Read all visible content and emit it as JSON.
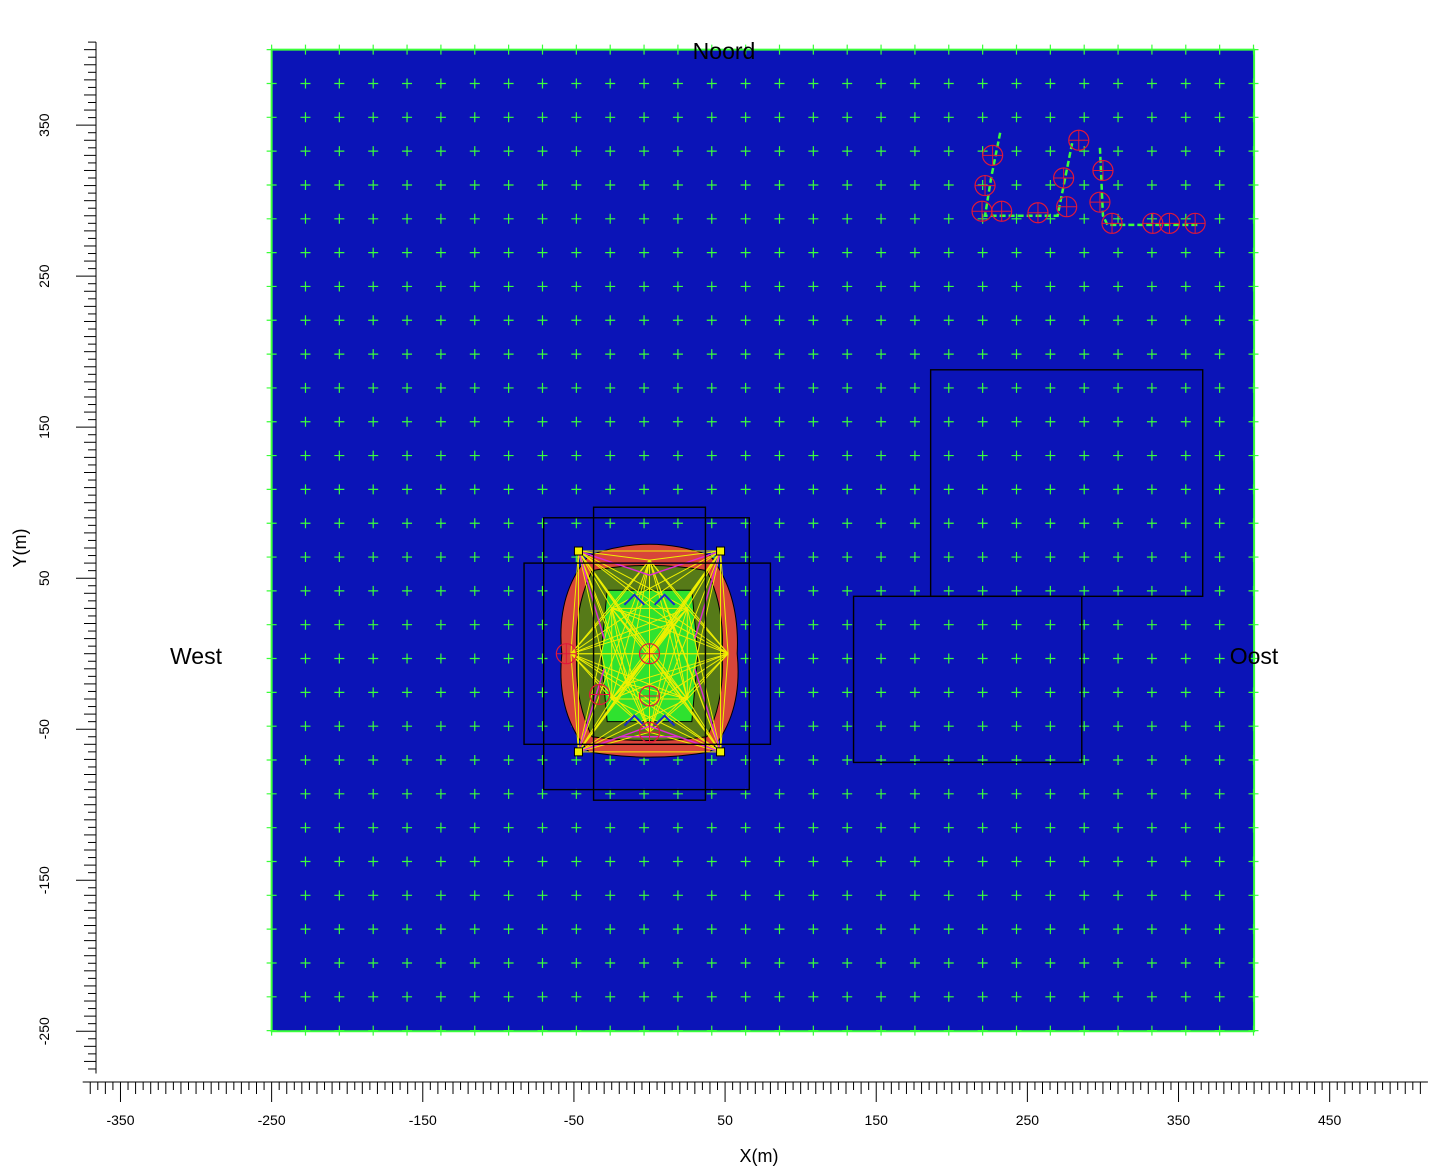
{
  "map": {
    "compass": {
      "north": "Noord",
      "west": "West",
      "east": "Oost"
    },
    "x_axis": {
      "label": "X(m)",
      "ticks": [
        "-350",
        "-250",
        "-150",
        "-50",
        "50",
        "150",
        "250",
        "350",
        "450"
      ],
      "range": [
        -375,
        515
      ]
    },
    "y_axis": {
      "label": "Y(m)",
      "ticks": [
        "350",
        "250",
        "150",
        "50",
        "-50",
        "-150",
        "-250"
      ],
      "range": [
        -278,
        405
      ]
    },
    "domain": {
      "x_range": [
        -250,
        400
      ],
      "y_range": [
        -250,
        400
      ]
    },
    "grid_spacing": 22.4,
    "colors": {
      "background_field": "#0b14b7",
      "grid_marker": "#3aff3a",
      "building_outline": "#000000",
      "contour_outer": "#d8453a",
      "contour_mid": "#567a18",
      "contour_inner": "#2fe22f",
      "source_line_yellow": "#f0f000",
      "source_line_magenta": "#e12ad8",
      "point_source_circle": "#e0183a"
    },
    "buildings_m": [
      {
        "x1": -70,
        "y1": 90,
        "x2": 66,
        "y2": -90
      },
      {
        "x1": -37,
        "y1": 97,
        "x2": 37,
        "y2": -97
      },
      {
        "x1": -83,
        "y1": 60,
        "x2": 80,
        "y2": -60
      },
      {
        "x1": 186,
        "y1": 188,
        "x2": 366,
        "y2": 38
      },
      {
        "x1": 135,
        "y1": 38,
        "x2": 286,
        "y2": -72
      }
    ],
    "line_source_polylines_m": [
      [
        [
          232,
          345
        ],
        [
          226,
          315
        ],
        [
          222,
          290
        ],
        [
          245,
          290
        ],
        [
          270,
          290
        ],
        [
          280,
          340
        ]
      ],
      [
        [
          298,
          335
        ],
        [
          300,
          290
        ],
        [
          303,
          284
        ],
        [
          330,
          284
        ],
        [
          363,
          284
        ]
      ]
    ],
    "point_sources_m": [
      [
        227,
        330
      ],
      [
        222,
        310
      ],
      [
        220,
        293
      ],
      [
        233,
        293
      ],
      [
        257,
        292
      ],
      [
        276,
        296
      ],
      [
        274,
        315
      ],
      [
        284,
        340
      ],
      [
        300,
        320
      ],
      [
        298,
        299
      ],
      [
        306,
        285
      ],
      [
        333,
        285
      ],
      [
        344,
        285
      ],
      [
        361,
        285
      ],
      [
        -55,
        0
      ],
      [
        0,
        0
      ],
      [
        -33,
        -27
      ],
      [
        0,
        -28
      ],
      [
        0,
        -52
      ]
    ]
  }
}
